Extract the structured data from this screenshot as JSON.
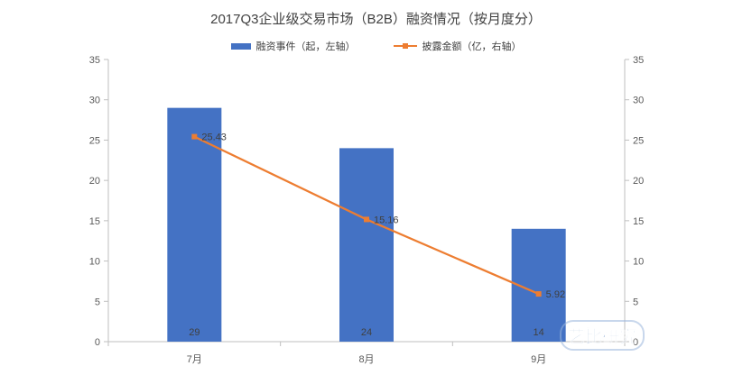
{
  "chart_data": {
    "type": "bar",
    "title": "2017Q3企业级交易市场（B2B）融资情况（按月度分）",
    "categories": [
      "7月",
      "8月",
      "9月"
    ],
    "series": [
      {
        "name": "融资事件（起，左轴）",
        "type": "bar",
        "axis": "left",
        "values": [
          29,
          24,
          14
        ],
        "data_labels": [
          "29",
          "24",
          "14"
        ],
        "color": "#4472C4"
      },
      {
        "name": "披露金额（亿，右轴）",
        "type": "line",
        "axis": "right",
        "values": [
          25.43,
          15.16,
          5.92
        ],
        "data_labels": [
          "25.43",
          "15.16",
          "5.92"
        ],
        "color": "#ED7D31"
      }
    ],
    "y_left": {
      "min": 0,
      "max": 35,
      "ticks": [
        "0",
        "5",
        "10",
        "15",
        "20",
        "25",
        "30",
        "35"
      ]
    },
    "y_right": {
      "min": 0,
      "max": 35,
      "ticks": [
        "0",
        "5",
        "10",
        "15",
        "20",
        "25",
        "30",
        "35"
      ]
    },
    "xlabel": "",
    "ylabel": "",
    "grid": false,
    "legend_position": "top"
  },
  "watermark": {
    "text": "艺比研究",
    "color": "#3b6fb5"
  }
}
